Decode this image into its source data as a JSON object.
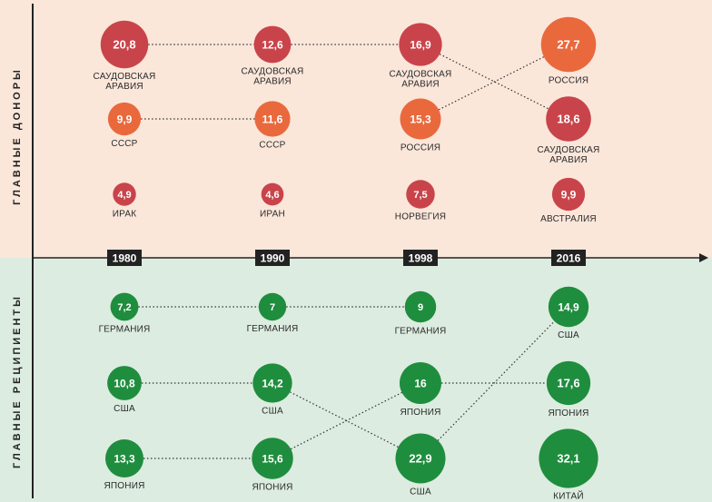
{
  "chart_data": {
    "type": "bubble-ranking",
    "sections": {
      "donors_title": "ГЛАВНЫЕ ДОНОРЫ",
      "recipients_title": "ГЛАВНЫЕ РЕЦИПИЕНТЫ"
    },
    "years": [
      "1980",
      "1990",
      "1998",
      "2016"
    ],
    "donors": [
      [
        {
          "country": "САУДОВСКАЯ АРАВИЯ",
          "value": 20.8,
          "label": "20,8",
          "color": "#c9444a"
        },
        {
          "country": "СССР",
          "value": 9.9,
          "label": "9,9",
          "color": "#e9693d"
        },
        {
          "country": "ИРАК",
          "value": 4.9,
          "label": "4,9",
          "color": "#c9444a"
        }
      ],
      [
        {
          "country": "САУДОВСКАЯ АРАВИЯ",
          "value": 12.6,
          "label": "12,6",
          "color": "#c9444a"
        },
        {
          "country": "СССР",
          "value": 11.6,
          "label": "11,6",
          "color": "#e9693d"
        },
        {
          "country": "ИРАН",
          "value": 4.6,
          "label": "4,6",
          "color": "#c9444a"
        }
      ],
      [
        {
          "country": "САУДОВСКАЯ АРАВИЯ",
          "value": 16.9,
          "label": "16,9",
          "color": "#c9444a"
        },
        {
          "country": "РОССИЯ",
          "value": 15.3,
          "label": "15,3",
          "color": "#e9693d"
        },
        {
          "country": "НОРВЕГИЯ",
          "value": 7.5,
          "label": "7,5",
          "color": "#c9444a"
        }
      ],
      [
        {
          "country": "РОССИЯ",
          "value": 27.7,
          "label": "27,7",
          "color": "#e9693d"
        },
        {
          "country": "САУДОВСКАЯ АРАВИЯ",
          "value": 18.6,
          "label": "18,6",
          "color": "#c9444a"
        },
        {
          "country": "АВСТРАЛИЯ",
          "value": 9.9,
          "label": "9,9",
          "color": "#c9444a"
        }
      ]
    ],
    "recipients": [
      [
        {
          "country": "ГЕРМАНИЯ",
          "value": 7.2,
          "label": "7,2",
          "color": "#1f8d3e"
        },
        {
          "country": "США",
          "value": 10.8,
          "label": "10,8",
          "color": "#1f8d3e"
        },
        {
          "country": "ЯПОНИЯ",
          "value": 13.3,
          "label": "13,3",
          "color": "#1f8d3e"
        }
      ],
      [
        {
          "country": "ГЕРМАНИЯ",
          "value": 7,
          "label": "7",
          "color": "#1f8d3e"
        },
        {
          "country": "США",
          "value": 14.2,
          "label": "14,2",
          "color": "#1f8d3e"
        },
        {
          "country": "ЯПОНИЯ",
          "value": 15.6,
          "label": "15,6",
          "color": "#1f8d3e"
        }
      ],
      [
        {
          "country": "ГЕРМАНИЯ",
          "value": 9,
          "label": "9",
          "color": "#1f8d3e"
        },
        {
          "country": "ЯПОНИЯ",
          "value": 16,
          "label": "16",
          "color": "#1f8d3e"
        },
        {
          "country": "США",
          "value": 22.9,
          "label": "22,9",
          "color": "#1f8d3e"
        }
      ],
      [
        {
          "country": "США",
          "value": 14.9,
          "label": "14,9",
          "color": "#1f8d3e"
        },
        {
          "country": "ЯПОНИЯ",
          "value": 17.6,
          "label": "17,6",
          "color": "#1f8d3e"
        },
        {
          "country": "КИТАЙ",
          "value": 32.1,
          "label": "32,1",
          "color": "#1f8d3e"
        }
      ]
    ],
    "colors": {
      "donors_bg": "#fbe6da",
      "recipients_bg": "#dcece0",
      "axis": "#222222",
      "year_box": "#222222"
    }
  }
}
